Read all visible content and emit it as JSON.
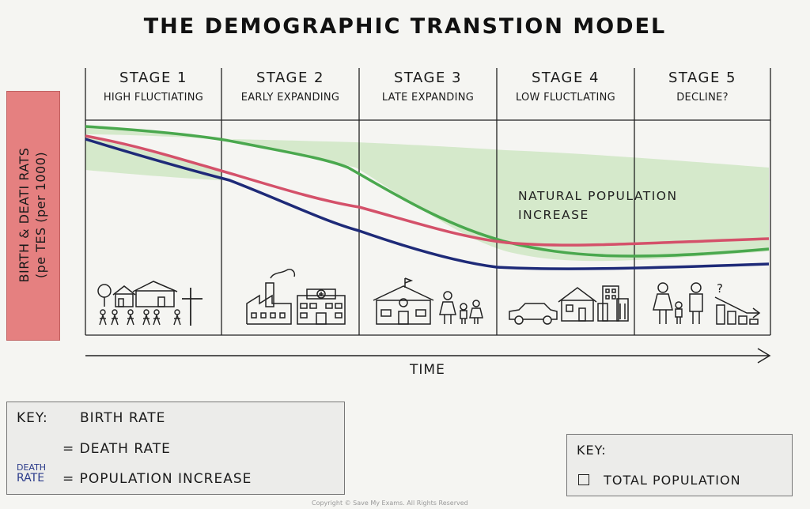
{
  "title": "THE DEMOGRAPHIC TRANSTION MODEL",
  "y_axis_label_line1": "BIRTH & DEATI RATS",
  "y_axis_label_line2": "(pe TES (per 1000)",
  "x_axis_label": "TIME",
  "stages": [
    {
      "name": "STAGE 1",
      "desc": "HIGH FLUCTIATING"
    },
    {
      "name": "STAGE 2",
      "desc": "EARLY EXPANDING"
    },
    {
      "name": "STAGE 3",
      "desc": "LATE EXPANDING"
    },
    {
      "name": "STAGE 4",
      "desc": "LOW FLUCTLATING"
    },
    {
      "name": "STAGE 5",
      "desc": "DECLINE?"
    }
  ],
  "area_label_line1": "NATURAL POPULATION",
  "area_label_line2": "INCREASE",
  "key_left": {
    "heading": "KEY:",
    "row1": "BIRTH RATE",
    "row2": "= DEATH RATE",
    "row3": "= POPULATION INCREASE",
    "small_legend_line1": "DEATH",
    "small_legend_line2": "RATE"
  },
  "key_right": {
    "heading": "KEY:",
    "row1": "TOTAL POPULATION"
  },
  "colors": {
    "green": "#4aa84e",
    "red": "#d4516a",
    "navy": "#1e2a78",
    "shading": "#cfe6c4",
    "ylabel_bg": "#e58080"
  },
  "icons": {
    "stage1": [
      "village-houses-icon",
      "children-group-icon",
      "cross-icon"
    ],
    "stage2": [
      "factory-icon",
      "hospital-icon"
    ],
    "stage3": [
      "school-icon",
      "family-icon"
    ],
    "stage4": [
      "car-icon",
      "house-icon",
      "city-buildings-icon"
    ],
    "stage5": [
      "elderly-family-icon",
      "declining-bars-icon"
    ]
  },
  "copyright": "Copyright © Save My Exams. All Rights Reserved"
}
